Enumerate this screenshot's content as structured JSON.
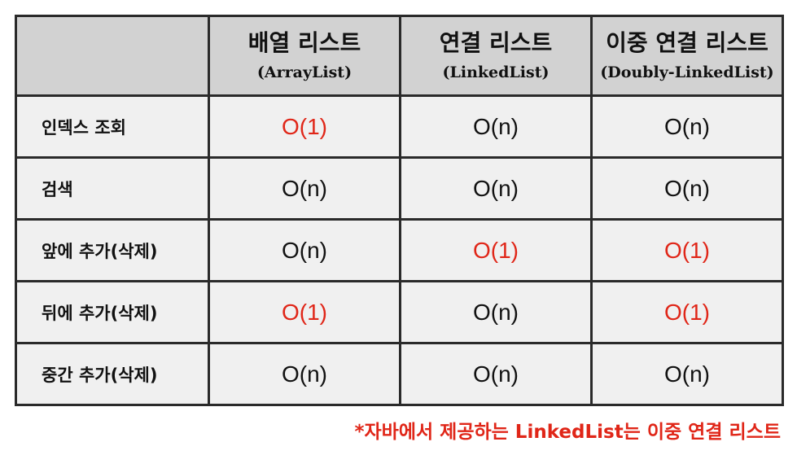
{
  "colors": {
    "fast": "#e02618",
    "header_bg": "#d2d2d2",
    "cell_bg": "#f0f0f0"
  },
  "header": {
    "corner": "",
    "columns": [
      {
        "title": "배열 리스트",
        "subtitle": "(ArrayList)"
      },
      {
        "title": "연결 리스트",
        "subtitle": "(LinkedList)"
      },
      {
        "title": "이중 연결 리스트",
        "subtitle": "(Doubly-LinkedList)"
      }
    ]
  },
  "rows": [
    {
      "operation": "인덱스 조회",
      "values": [
        "O(1)",
        "O(n)",
        "O(n)"
      ],
      "fast": [
        true,
        false,
        false
      ]
    },
    {
      "operation": "검색",
      "values": [
        "O(n)",
        "O(n)",
        "O(n)"
      ],
      "fast": [
        false,
        false,
        false
      ]
    },
    {
      "operation": "앞에 추가(삭제)",
      "values": [
        "O(n)",
        "O(1)",
        "O(1)"
      ],
      "fast": [
        false,
        true,
        true
      ]
    },
    {
      "operation": "뒤에 추가(삭제)",
      "values": [
        "O(1)",
        "O(n)",
        "O(1)"
      ],
      "fast": [
        true,
        false,
        true
      ]
    },
    {
      "operation": "중간 추가(삭제)",
      "values": [
        "O(n)",
        "O(n)",
        "O(n)"
      ],
      "fast": [
        false,
        false,
        false
      ]
    }
  ],
  "footnote": "*자바에서 제공하는 LinkedList는 이중 연결 리스트"
}
